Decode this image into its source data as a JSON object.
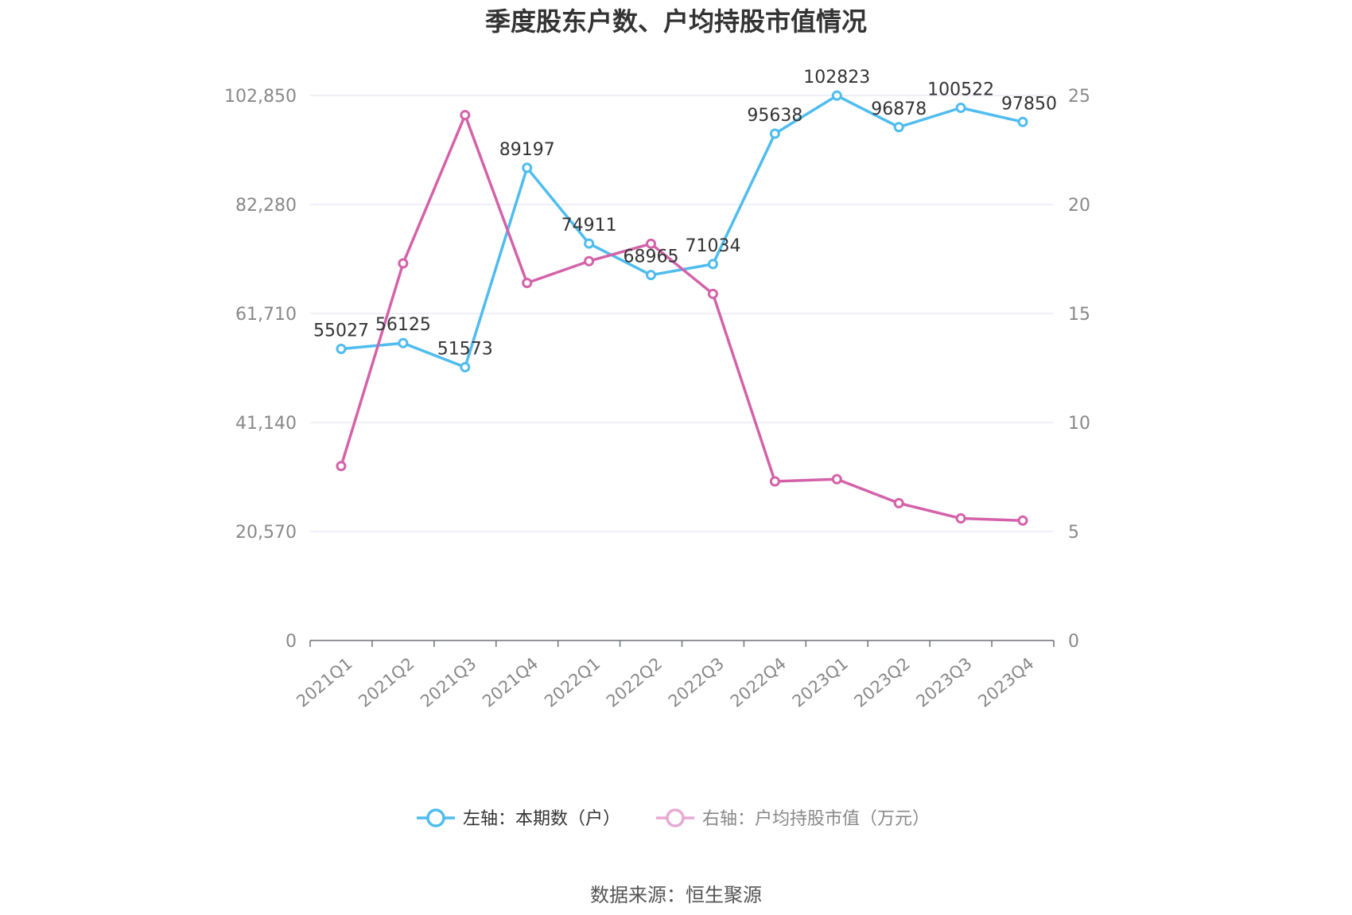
{
  "chart_data": {
    "type": "line",
    "title": "季度股东户数、户均持股市值情况",
    "categories": [
      "2021Q1",
      "2021Q2",
      "2021Q3",
      "2021Q4",
      "2022Q1",
      "2022Q2",
      "2022Q3",
      "2022Q4",
      "2023Q1",
      "2023Q2",
      "2023Q3",
      "2023Q4"
    ],
    "left_axis": {
      "ticks": [
        0,
        20570,
        41140,
        61710,
        82280,
        102850
      ],
      "tick_labels": [
        "0",
        "20,570",
        "41,140",
        "61,710",
        "82,280",
        "102,850"
      ],
      "ylim": [
        0,
        102850
      ]
    },
    "right_axis": {
      "ticks": [
        0,
        5,
        10,
        15,
        20,
        25
      ],
      "tick_labels": [
        "0",
        "5",
        "10",
        "15",
        "20",
        "25"
      ],
      "ylim": [
        0,
        25
      ]
    },
    "grid": true,
    "legend_position": "bottom",
    "series": [
      {
        "name": "左轴：本期数（户）",
        "axis": "left",
        "color": "#4fbcef",
        "values": [
          55027,
          56125,
          51573,
          89197,
          74911,
          68965,
          71034,
          95638,
          102823,
          96878,
          100522,
          97850
        ],
        "labels": [
          "55027",
          "56125",
          "51573",
          "89197",
          "74911",
          "68965",
          "71034",
          "95638",
          "102823",
          "96878",
          "100522",
          "97850"
        ]
      },
      {
        "name": "右轴：户均持股市值（万元）",
        "axis": "right",
        "color": "#d462a9",
        "values": [
          8.0,
          17.3,
          24.1,
          16.4,
          17.4,
          18.2,
          15.9,
          7.3,
          7.4,
          6.3,
          5.6,
          5.5
        ]
      }
    ]
  },
  "source": "数据来源：恒生聚源"
}
